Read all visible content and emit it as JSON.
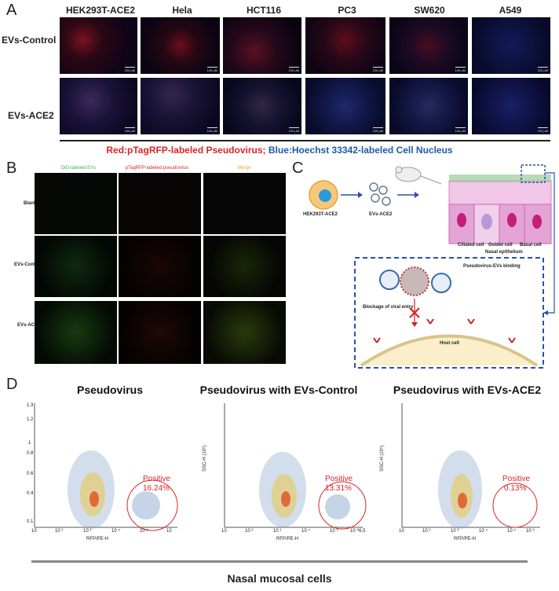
{
  "panel_a": {
    "letter": "A",
    "columns": [
      "HEK293T-ACE2",
      "Hela",
      "HCT116",
      "PC3",
      "SW620",
      "A549"
    ],
    "rows": [
      "EVs-Control",
      "EVs-ACE2"
    ],
    "scale_text": "100 μM",
    "caption_red": "Red:pTagRFP-labeled Pseudovirus;",
    "caption_blue": "Blue:Hoechst 33342-labeled Cell Nucleus"
  },
  "panel_b": {
    "letter": "B",
    "columns": [
      "DiO-labeled EVs",
      "pTagRFP-labeled pseudovirus",
      "Merge"
    ],
    "rows": [
      "Blank",
      "EVs-Control",
      "EVs-ACE2"
    ]
  },
  "panel_c": {
    "letter": "C",
    "cell_label": "HEK293T-ACE2",
    "evs_label": "EVs-ACE2",
    "ciliated": "Ciliated cell",
    "goblet": "Goblet cell",
    "basal": "Basal cell",
    "nasal": "Nasal epithelium",
    "binding": "Pseudovirus-EVs binding",
    "blockage": "Blockage of viral entry",
    "host": "Host cell"
  },
  "panel_d": {
    "letter": "D",
    "footer": "Nasal mucosal cells",
    "plots": [
      {
        "title": "Pseudovirus",
        "ylabel": "",
        "positive": "Positive",
        "pct": "16.24%"
      },
      {
        "title": "Pseudovirus with EVs-Control",
        "ylabel": "SSC-H (10⁵)",
        "positive": "Positive",
        "pct": "13.31%"
      },
      {
        "title": "Pseudovirus with EVs-ACE2",
        "ylabel": "SSC-H (10⁵)",
        "positive": "Positive",
        "pct": "0.13%"
      }
    ],
    "xlabel": "RFP/PE-H",
    "yticks": [
      "0.1",
      "0.4",
      "0.6",
      "0.8",
      "1",
      "1.2",
      "1.3"
    ],
    "xticks_1": [
      "10",
      "10 ²",
      "10 ³",
      "10 ⁴",
      "10 ⁵",
      "10"
    ],
    "xticks_2": [
      "10",
      "10 ²",
      "10 ³",
      "10 ⁴",
      "10 ⁵",
      "10 ^6.5"
    ],
    "xticks_3": [
      "10",
      "10 ²",
      "10 ³",
      "10 ⁴",
      "10 ⁵",
      "10 ⁶"
    ]
  },
  "colors": {
    "red": "#d9252a",
    "blue": "#1f5aa6",
    "frame_blue": "#2a4fb0"
  }
}
